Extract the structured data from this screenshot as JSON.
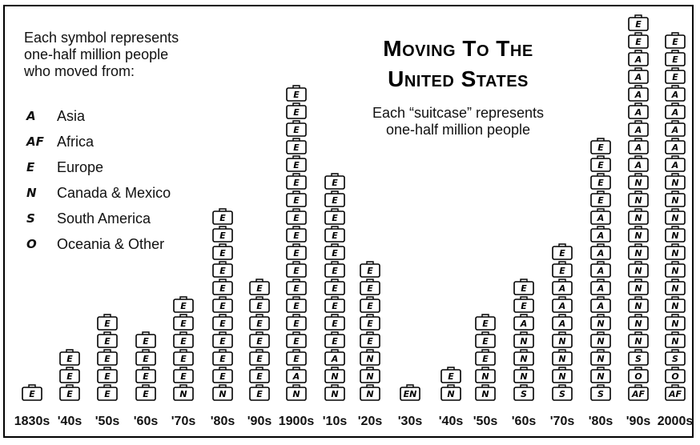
{
  "legend": {
    "intro_lines": [
      "Each symbol represents",
      "one-half million people",
      "who moved from:"
    ],
    "items": [
      {
        "code": "A",
        "label": "Asia"
      },
      {
        "code": "AF",
        "label": "Africa"
      },
      {
        "code": "E",
        "label": "Europe"
      },
      {
        "code": "N",
        "label": "Canada & Mexico"
      },
      {
        "code": "S",
        "label": "South America"
      },
      {
        "code": "O",
        "label": "Oceania & Other"
      }
    ]
  },
  "title_lines": [
    "Moving To The",
    "United States"
  ],
  "subtitle_lines": [
    "Each “suitcase” represents",
    "one-half million people"
  ],
  "chart_data": {
    "type": "pictograph",
    "unit": "one-half million people",
    "categories": [
      "1830s",
      "'40s",
      "'50s",
      "'60s",
      "'70s",
      "'80s",
      "'90s",
      "1900s",
      "'10s",
      "'20s",
      "'30s",
      "'40s",
      "'50s",
      "'60s",
      "'70s",
      "'80s",
      "'90s",
      "2000s"
    ],
    "stacks": [
      [
        "E"
      ],
      [
        "E",
        "E",
        "E"
      ],
      [
        "E",
        "E",
        "E",
        "E",
        "E"
      ],
      [
        "E",
        "E",
        "E",
        "E"
      ],
      [
        "N",
        "E",
        "E",
        "E",
        "E",
        "E"
      ],
      [
        "N",
        "E",
        "E",
        "E",
        "E",
        "E",
        "E",
        "E",
        "E",
        "E",
        "E"
      ],
      [
        "E",
        "E",
        "E",
        "E",
        "E",
        "E",
        "E"
      ],
      [
        "N",
        "A",
        "E",
        "E",
        "E",
        "E",
        "E",
        "E",
        "E",
        "E",
        "E",
        "E",
        "E",
        "E",
        "E",
        "E",
        "E",
        "E"
      ],
      [
        "N",
        "N",
        "A",
        "E",
        "E",
        "E",
        "E",
        "E",
        "E",
        "E",
        "E",
        "E",
        "E"
      ],
      [
        "N",
        "N",
        "N",
        "E",
        "E",
        "E",
        "E",
        "E"
      ],
      [
        "EN"
      ],
      [
        "N",
        "E"
      ],
      [
        "N",
        "N",
        "E",
        "E",
        "E"
      ],
      [
        "S",
        "N",
        "N",
        "N",
        "A",
        "E",
        "E"
      ],
      [
        "S",
        "N",
        "N",
        "N",
        "A",
        "A",
        "A",
        "E",
        "E"
      ],
      [
        "S",
        "N",
        "N",
        "N",
        "N",
        "A",
        "A",
        "A",
        "A",
        "A",
        "A",
        "E",
        "E",
        "E",
        "E"
      ],
      [
        "AF",
        "O",
        "S",
        "N",
        "N",
        "N",
        "N",
        "N",
        "N",
        "N",
        "N",
        "N",
        "N",
        "A",
        "A",
        "A",
        "A",
        "A",
        "A",
        "A",
        "E",
        "E"
      ],
      [
        "AF",
        "O",
        "S",
        "N",
        "N",
        "N",
        "N",
        "N",
        "N",
        "N",
        "N",
        "N",
        "N",
        "A",
        "A",
        "A",
        "A",
        "A",
        "E",
        "E",
        "E"
      ]
    ],
    "colors": {
      "outline": "#000000",
      "fill": "#ffffff"
    }
  }
}
